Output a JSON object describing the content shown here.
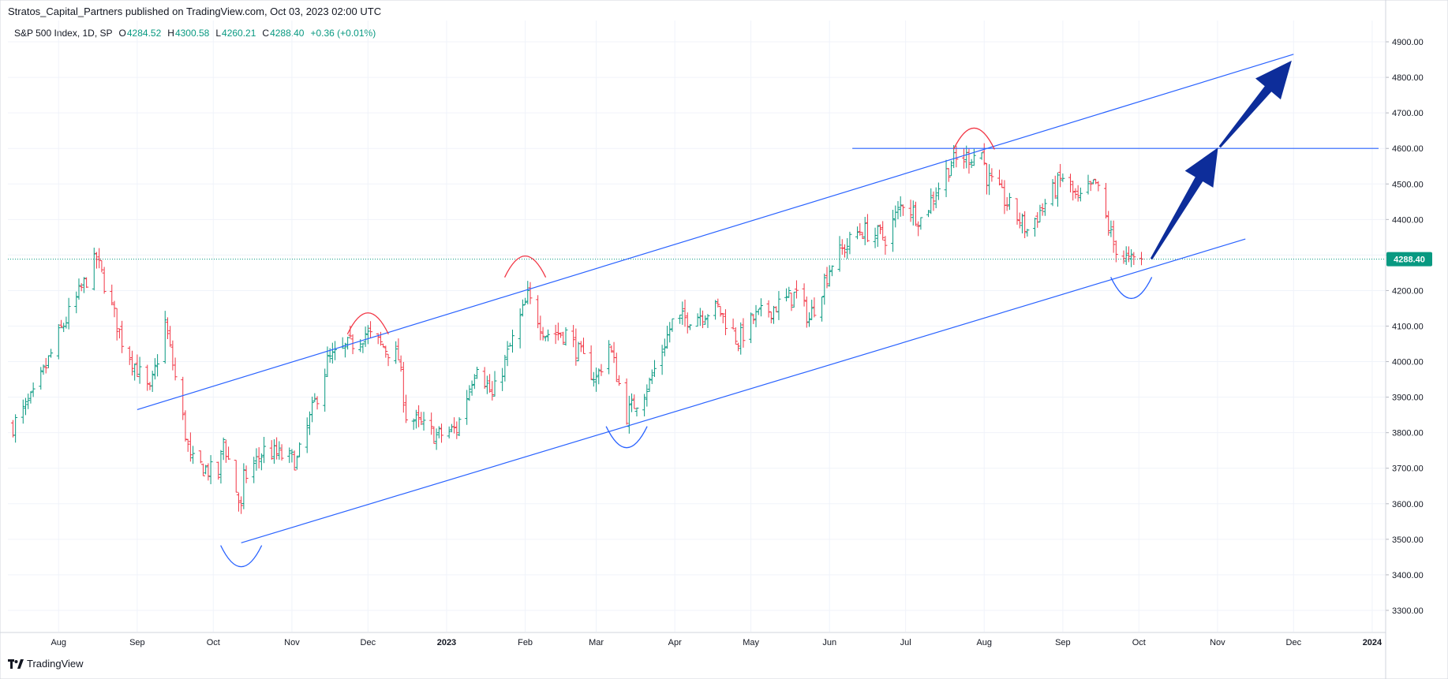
{
  "header": {
    "published": "Stratos_Capital_Partners published on TradingView.com, Oct 03, 2023 02:00 UTC"
  },
  "legend": {
    "symbol": "S&P 500 Index, 1D, SP",
    "open_label": "O",
    "open": "4284.52",
    "high_label": "H",
    "high": "4300.58",
    "low_label": "L",
    "low": "4260.21",
    "close_label": "C",
    "close": "4288.40",
    "change": "+0.36 (+0.01%)"
  },
  "footer": {
    "brand": "TradingView",
    "logo_icon": "tradingview-logo-icon"
  },
  "colors": {
    "up": "#089981",
    "down": "#f23645",
    "annotation": "#2962ff",
    "arrow": "#0d2d9a",
    "arc_red": "#f23645",
    "grid": "#f0f3fa"
  },
  "chart_data": {
    "type": "ohlc",
    "title": "",
    "xlabel": "",
    "ylabel": "",
    "ylim": [
      3240,
      4960
    ],
    "yticks": [
      3300,
      3400,
      3500,
      3600,
      3700,
      3800,
      3900,
      4000,
      4100,
      4200,
      4300,
      4400,
      4500,
      4600,
      4700,
      4800,
      4900
    ],
    "ytick_labels": [
      "3300.00",
      "3400.00",
      "3500.00",
      "3600.00",
      "3700.00",
      "3800.00",
      "3900.00",
      "4000.00",
      "4100.00",
      "4200.00",
      "4300.00",
      "4400.00",
      "4500.00",
      "4600.00",
      "4700.00",
      "4800.00",
      "4900.00"
    ],
    "x_axis_start": "2022-07-12",
    "x_axis_end": "2024-01-06",
    "xtick_dates": [
      "2022-08-01",
      "2022-09-01",
      "2022-10-01",
      "2022-11-01",
      "2022-12-01",
      "2023-01-01",
      "2023-02-01",
      "2023-03-01",
      "2023-04-01",
      "2023-05-01",
      "2023-06-01",
      "2023-07-01",
      "2023-08-01",
      "2023-09-01",
      "2023-10-01",
      "2023-11-01",
      "2023-12-01",
      "2024-01-01"
    ],
    "xtick_labels": [
      "Aug",
      "Sep",
      "Oct",
      "Nov",
      "Dec",
      "2023",
      "Feb",
      "Mar",
      "Apr",
      "May",
      "Jun",
      "Jul",
      "Aug",
      "Sep",
      "Oct",
      "Nov",
      "Dec",
      "2024"
    ],
    "last_price": 4288.4,
    "last_price_label": "4288.40",
    "anchors": [
      [
        "2022-07-14",
        3820
      ],
      [
        "2022-07-22",
        3900
      ],
      [
        "2022-08-02",
        4090
      ],
      [
        "2022-08-16",
        4290
      ],
      [
        "2022-08-26",
        4060
      ],
      [
        "2022-09-06",
        3910
      ],
      [
        "2022-09-12",
        4110
      ],
      [
        "2022-09-22",
        3720
      ],
      [
        "2022-10-03",
        3680
      ],
      [
        "2022-10-05",
        3780
      ],
      [
        "2022-10-12",
        3580
      ],
      [
        "2022-10-13",
        3670
      ],
      [
        "2022-10-21",
        3750
      ],
      [
        "2022-11-03",
        3720
      ],
      [
        "2022-11-15",
        4000
      ],
      [
        "2022-11-30",
        4080
      ],
      [
        "2022-12-13",
        4010
      ],
      [
        "2022-12-16",
        3850
      ],
      [
        "2022-12-28",
        3790
      ],
      [
        "2023-01-05",
        3810
      ],
      [
        "2023-01-13",
        4000
      ],
      [
        "2023-01-19",
        3900
      ],
      [
        "2023-02-02",
        4180
      ],
      [
        "2023-02-09",
        4080
      ],
      [
        "2023-02-17",
        4080
      ],
      [
        "2023-03-01",
        3950
      ],
      [
        "2023-03-06",
        4050
      ],
      [
        "2023-03-13",
        3850
      ],
      [
        "2023-03-22",
        3940
      ],
      [
        "2023-03-31",
        4110
      ],
      [
        "2023-04-18",
        4150
      ],
      [
        "2023-04-26",
        4060
      ],
      [
        "2023-05-02",
        4120
      ],
      [
        "2023-05-19",
        4190
      ],
      [
        "2023-05-24",
        4120
      ],
      [
        "2023-06-02",
        4280
      ],
      [
        "2023-06-13",
        4370
      ],
      [
        "2023-06-23",
        4350
      ],
      [
        "2023-06-30",
        4450
      ],
      [
        "2023-07-07",
        4400
      ],
      [
        "2023-07-19",
        4560
      ],
      [
        "2023-07-31",
        4590
      ],
      [
        "2023-08-02",
        4520
      ],
      [
        "2023-08-18",
        4370
      ],
      [
        "2023-09-01",
        4520
      ],
      [
        "2023-09-07",
        4450
      ],
      [
        "2023-09-14",
        4500
      ],
      [
        "2023-09-21",
        4330
      ],
      [
        "2023-09-27",
        4280
      ],
      [
        "2023-10-02",
        4288
      ]
    ],
    "annotations": {
      "upper_channel": [
        [
          "2022-09-01",
          3865
        ],
        [
          "2023-12-01",
          4865
        ]
      ],
      "lower_channel": [
        [
          "2022-10-12",
          3490
        ],
        [
          "2023-11-12",
          4345
        ]
      ],
      "horizontal_resistance": {
        "from": "2023-06-10",
        "to": "2024-01-06",
        "value": 4600
      },
      "arrows": [
        {
          "from": [
            "2023-10-06",
            4290
          ],
          "to": [
            "2023-11-01",
            4600
          ]
        },
        {
          "from": [
            "2023-11-02",
            4605
          ],
          "to": [
            "2023-11-30",
            4845
          ]
        }
      ],
      "top_arcs": [
        [
          "2022-12-01",
          4095
        ],
        [
          "2023-02-01",
          4255
        ],
        [
          "2023-07-28",
          4615
        ]
      ],
      "bottom_arcs": [
        [
          "2022-10-12",
          3465
        ],
        [
          "2023-03-13",
          3800
        ],
        [
          "2023-09-28",
          4220
        ]
      ]
    }
  }
}
